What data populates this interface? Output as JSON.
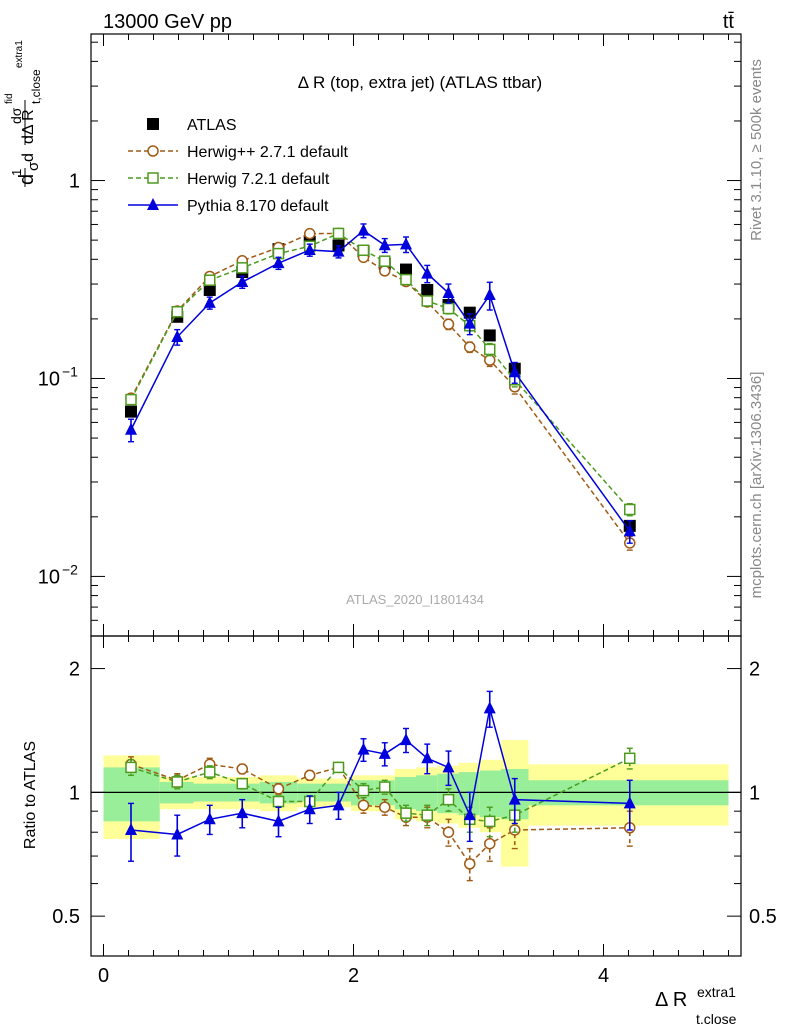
{
  "header": {
    "left": "13000 GeV pp",
    "right": "tt̄",
    "analysis_tag": "ATLAS_2020_I1801434",
    "side_rivet": "Rivet 3.1.10, ≥ 500k events",
    "side_mcplots": "mcplots.cern.ch [arXiv:1306.3436]"
  },
  "chart_data": {
    "type": "scatter",
    "title": "Δ R (top, extra jet) (ATLAS ttbar)",
    "xlabel": "Δ R t,close extra1",
    "ylabel_main": "dσ/dΔR normalized",
    "ylabel_ratio": "Ratio to ATLAS",
    "xlim": [
      -0.1,
      5.1
    ],
    "ylim_main": [
      0.005,
      5.5
    ],
    "ylim_ratio": [
      0.4,
      2.4
    ],
    "yscale_main": "log",
    "yscale_ratio": "log",
    "legend_position": "top-left",
    "x_ticks": [
      "0",
      "2",
      "4"
    ],
    "y_ticks_main": [
      "10^-2",
      "10^-1",
      "1"
    ],
    "y_ticks_ratio": [
      "0.5",
      "1",
      "2"
    ],
    "x": [
      0.22,
      0.59,
      0.85,
      1.11,
      1.4,
      1.65,
      1.88,
      2.08,
      2.25,
      2.42,
      2.59,
      2.76,
      2.93,
      3.09,
      3.29,
      4.21
    ],
    "bin_edges": [
      0.0,
      0.45,
      0.72,
      0.98,
      1.25,
      1.55,
      1.76,
      1.98,
      2.17,
      2.33,
      2.5,
      2.67,
      2.84,
      3.01,
      3.18,
      3.4,
      5.0
    ],
    "data_errors_inner": [
      0.15,
      0.06,
      0.05,
      0.05,
      0.06,
      0.05,
      0.05,
      0.07,
      0.07,
      0.09,
      0.1,
      0.11,
      0.12,
      0.13,
      0.14,
      0.07
    ],
    "data_errors_outer": [
      0.23,
      0.09,
      0.09,
      0.09,
      0.1,
      0.08,
      0.08,
      0.1,
      0.1,
      0.14,
      0.15,
      0.16,
      0.18,
      0.2,
      0.34,
      0.17
    ],
    "series": [
      {
        "name": "ATLAS",
        "style": "data",
        "color": "#000000",
        "marker": "square-filled",
        "values": [
          0.068,
          0.205,
          0.28,
          0.345,
          0.45,
          0.49,
          0.47,
          0.44,
          0.38,
          0.355,
          0.28,
          0.235,
          0.215,
          0.165,
          0.112,
          0.018
        ]
      },
      {
        "name": "Herwig++ 2.7.1 default",
        "style": "dashed",
        "color": "#a05a14",
        "marker": "circle-open",
        "ratio": [
          1.17,
          1.07,
          1.17,
          1.14,
          1.02,
          1.1,
          1.15,
          0.93,
          0.92,
          0.87,
          0.87,
          0.8,
          0.67,
          0.75,
          0.81,
          0.82
        ],
        "ratio_err": [
          0.05,
          0.04,
          0.04,
          0.03,
          0.03,
          0.03,
          0.03,
          0.04,
          0.04,
          0.04,
          0.05,
          0.06,
          0.06,
          0.07,
          0.08,
          0.08
        ]
      },
      {
        "name": "Herwig 7.2.1 default",
        "style": "dashed",
        "color": "#4c9a1e",
        "marker": "square-open",
        "ratio": [
          1.15,
          1.06,
          1.12,
          1.05,
          0.95,
          0.95,
          1.15,
          1.01,
          1.03,
          0.89,
          0.88,
          0.96,
          0.86,
          0.85,
          0.88,
          1.21
        ],
        "ratio_err": [
          0.05,
          0.04,
          0.04,
          0.03,
          0.03,
          0.03,
          0.03,
          0.04,
          0.04,
          0.04,
          0.05,
          0.06,
          0.06,
          0.07,
          0.08,
          0.07
        ]
      },
      {
        "name": "Pythia 8.170 default",
        "style": "solid",
        "color": "#0000dd",
        "marker": "triangle-filled",
        "ratio": [
          0.81,
          0.79,
          0.86,
          0.89,
          0.85,
          0.91,
          0.93,
          1.27,
          1.24,
          1.34,
          1.21,
          1.15,
          0.88,
          1.6,
          0.96,
          0.94
        ],
        "ratio_err": [
          0.13,
          0.09,
          0.07,
          0.07,
          0.07,
          0.07,
          0.07,
          0.08,
          0.08,
          0.09,
          0.1,
          0.11,
          0.12,
          0.16,
          0.12,
          0.13
        ]
      }
    ]
  }
}
